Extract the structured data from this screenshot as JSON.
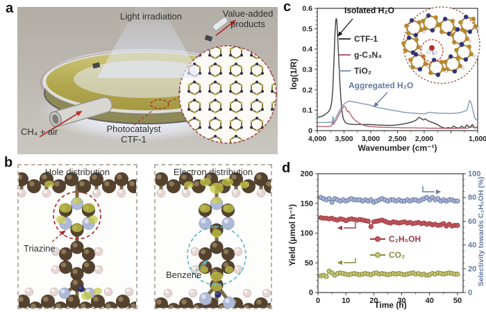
{
  "panels": {
    "a": {
      "label": "a",
      "light": "Light irradiation",
      "products": "Value-added products",
      "feed": "CH₄ + air",
      "catalyst1": "Photocatalyst",
      "catalyst2": "CTF-1"
    },
    "b": {
      "label": "b",
      "hole_title": "Hole distribution",
      "electron_title": "Electron distribution",
      "triazine": "Triazine",
      "benzene": "Benzene"
    },
    "c": {
      "label": "c"
    },
    "d": {
      "label": "d"
    }
  },
  "colors": {
    "accent_red": "#b23232",
    "ctf1_line": "#3d3d3d",
    "gc3n4_line": "#b2606c",
    "tio2_line": "#7d9ab5",
    "ethanol_line": "#9a3a42",
    "co2_line": "#8a8a3a",
    "selectivity_line": "#64789f",
    "hole_circle": "#b22828",
    "electron_circle": "#5fb6ca"
  },
  "chart_data": [
    {
      "panel": "c",
      "type": "line",
      "xlabel": "Wavenumber (cm⁻¹)",
      "ylabel": "log(1/R)",
      "xlim": [
        4000,
        1000
      ],
      "ylim": [
        0,
        0.6
      ],
      "x_reversed": true,
      "grid": false,
      "legend_position": "upper-left-inside",
      "xticks": [
        {
          "v": 4000,
          "t": "4,000"
        },
        {
          "v": 3500,
          "t": "3,500"
        },
        {
          "v": 3000,
          "t": "3,000"
        },
        {
          "v": 2500,
          "t": "2,500"
        },
        {
          "v": 2000,
          "t": "2,000"
        },
        {
          "v": 1500,
          "t": ""
        },
        {
          "v": 1000,
          "t": "1,000"
        }
      ],
      "yticks": [
        {
          "v": 0,
          "t": "0"
        },
        {
          "v": 0.1,
          "t": "0.1"
        },
        {
          "v": 0.2,
          "t": "0.2"
        },
        {
          "v": 0.3,
          "t": "0.3"
        },
        {
          "v": 0.4,
          "t": "0.4"
        },
        {
          "v": 0.5,
          "t": "0.5"
        },
        {
          "v": 0.6,
          "t": "0.6"
        }
      ],
      "annotations": [
        "Isolated H₂O",
        "Aggregated H₂O"
      ],
      "series": [
        {
          "name": "CTF-1",
          "color": "#3d3d3d",
          "points": [
            [
              4000,
              0.065
            ],
            [
              3950,
              0.068
            ],
            [
              3900,
              0.072
            ],
            [
              3850,
              0.08
            ],
            [
              3800,
              0.09
            ],
            [
              3760,
              0.105
            ],
            [
              3730,
              0.14
            ],
            [
              3710,
              0.2
            ],
            [
              3690,
              0.33
            ],
            [
              3670,
              0.47
            ],
            [
              3655,
              0.54
            ],
            [
              3645,
              0.55
            ],
            [
              3635,
              0.54
            ],
            [
              3620,
              0.47
            ],
            [
              3600,
              0.36
            ],
            [
              3580,
              0.25
            ],
            [
              3560,
              0.16
            ],
            [
              3540,
              0.1
            ],
            [
              3520,
              0.065
            ],
            [
              3500,
              0.05
            ],
            [
              3470,
              0.04
            ],
            [
              3440,
              0.035
            ],
            [
              3400,
              0.032
            ],
            [
              3300,
              0.03
            ],
            [
              3200,
              0.03
            ],
            [
              3100,
              0.03
            ],
            [
              3000,
              0.03
            ],
            [
              2900,
              0.028
            ],
            [
              2800,
              0.027
            ],
            [
              2700,
              0.026
            ],
            [
              2600,
              0.026
            ],
            [
              2500,
              0.028
            ],
            [
              2400,
              0.032
            ],
            [
              2300,
              0.038
            ],
            [
              2200,
              0.045
            ],
            [
              2150,
              0.052
            ],
            [
              2100,
              0.065
            ],
            [
              2060,
              0.06
            ],
            [
              2020,
              0.052
            ],
            [
              1980,
              0.058
            ],
            [
              1940,
              0.05
            ],
            [
              1900,
              0.045
            ],
            [
              1850,
              0.04
            ],
            [
              1800,
              0.035
            ],
            [
              1750,
              0.03
            ],
            [
              1700,
              0.02
            ],
            [
              1650,
              0.015
            ],
            [
              1600,
              0.012
            ],
            [
              1550,
              0.015
            ],
            [
              1500,
              0.012
            ],
            [
              1450,
              0.022
            ],
            [
              1400,
              0.015
            ],
            [
              1350,
              0.012
            ],
            [
              1300,
              0.022
            ],
            [
              1250,
              0.012
            ],
            [
              1200,
              0.028
            ],
            [
              1150,
              0.015
            ],
            [
              1100,
              0.03
            ],
            [
              1050,
              0.012
            ],
            [
              1000,
              0.02
            ]
          ]
        },
        {
          "name": "g-C₃N₄",
          "color": "#b2606c",
          "points": [
            [
              4000,
              0.02
            ],
            [
              3900,
              0.02
            ],
            [
              3800,
              0.02
            ],
            [
              3750,
              0.021
            ],
            [
              3720,
              0.03
            ],
            [
              3705,
              0.065
            ],
            [
              3695,
              0.03
            ],
            [
              3680,
              0.04
            ],
            [
              3650,
              0.05
            ],
            [
              3620,
              0.065
            ],
            [
              3590,
              0.08
            ],
            [
              3560,
              0.095
            ],
            [
              3530,
              0.11
            ],
            [
              3500,
              0.12
            ],
            [
              3470,
              0.115
            ],
            [
              3450,
              0.1
            ],
            [
              3430,
              0.092
            ],
            [
              3410,
              0.095
            ],
            [
              3390,
              0.085
            ],
            [
              3350,
              0.068
            ],
            [
              3300,
              0.052
            ],
            [
              3250,
              0.042
            ],
            [
              3200,
              0.034
            ],
            [
              3150,
              0.028
            ],
            [
              3100,
              0.024
            ],
            [
              3000,
              0.02
            ],
            [
              2900,
              0.018
            ],
            [
              2800,
              0.017
            ],
            [
              2700,
              0.016
            ],
            [
              2600,
              0.015
            ],
            [
              2500,
              0.015
            ],
            [
              2400,
              0.014
            ],
            [
              2300,
              0.014
            ],
            [
              2200,
              0.014
            ],
            [
              2100,
              0.013
            ],
            [
              2000,
              0.013
            ],
            [
              1900,
              0.012
            ],
            [
              1800,
              0.012
            ],
            [
              1700,
              0.012
            ],
            [
              1600,
              0.011
            ],
            [
              1500,
              0.011
            ],
            [
              1400,
              0.011
            ],
            [
              1300,
              0.012
            ],
            [
              1200,
              0.012
            ],
            [
              1100,
              0.018
            ],
            [
              1050,
              0.014
            ],
            [
              1000,
              0.016
            ]
          ]
        },
        {
          "name": "TiO₂",
          "color": "#7d9ab5",
          "points": [
            [
              4000,
              0.04
            ],
            [
              3900,
              0.04
            ],
            [
              3800,
              0.041
            ],
            [
              3750,
              0.042
            ],
            [
              3720,
              0.035
            ],
            [
              3705,
              0.07
            ],
            [
              3695,
              0.045
            ],
            [
              3670,
              0.055
            ],
            [
              3640,
              0.07
            ],
            [
              3610,
              0.085
            ],
            [
              3580,
              0.1
            ],
            [
              3550,
              0.115
            ],
            [
              3520,
              0.125
            ],
            [
              3490,
              0.132
            ],
            [
              3460,
              0.138
            ],
            [
              3430,
              0.142
            ],
            [
              3400,
              0.145
            ],
            [
              3350,
              0.143
            ],
            [
              3300,
              0.14
            ],
            [
              3250,
              0.138
            ],
            [
              3200,
              0.135
            ],
            [
              3150,
              0.132
            ],
            [
              3100,
              0.13
            ],
            [
              3050,
              0.127
            ],
            [
              3000,
              0.124
            ],
            [
              2950,
              0.12
            ],
            [
              2900,
              0.116
            ],
            [
              2850,
              0.112
            ],
            [
              2800,
              0.11
            ],
            [
              2700,
              0.105
            ],
            [
              2600,
              0.1
            ],
            [
              2500,
              0.096
            ],
            [
              2400,
              0.091
            ],
            [
              2300,
              0.088
            ],
            [
              2200,
              0.086
            ],
            [
              2100,
              0.084
            ],
            [
              2000,
              0.082
            ],
            [
              1950,
              0.086
            ],
            [
              1900,
              0.09
            ],
            [
              1850,
              0.088
            ],
            [
              1800,
              0.087
            ],
            [
              1700,
              0.085
            ],
            [
              1600,
              0.085
            ],
            [
              1500,
              0.084
            ],
            [
              1400,
              0.086
            ],
            [
              1300,
              0.09
            ],
            [
              1250,
              0.095
            ],
            [
              1200,
              0.1
            ],
            [
              1150,
              0.148
            ],
            [
              1120,
              0.135
            ],
            [
              1080,
              0.09
            ],
            [
              1050,
              0.06
            ],
            [
              1000,
              0.048
            ]
          ]
        }
      ]
    },
    {
      "panel": "d",
      "type": "scatter-line",
      "xlabel": "Time (h)",
      "ylabel_left": "Yield (μmol h⁻¹)",
      "ylabel_right": "Selectivity towards C₂H₅OH (%)",
      "xlim": [
        0,
        52
      ],
      "ylim_left": [
        0,
        200
      ],
      "ylim_right": [
        0,
        100
      ],
      "grid": false,
      "xticks": [
        0,
        10,
        20,
        30,
        40,
        50
      ],
      "yticks_left": [
        0,
        50,
        100,
        150,
        200
      ],
      "yticks_right": [
        0,
        20,
        40,
        60,
        80,
        100
      ],
      "legend": [
        "C₂H₅OH",
        "CO₂"
      ],
      "x": [
        1,
        2,
        3,
        4,
        5,
        6,
        7,
        8,
        9,
        10,
        11,
        12,
        13,
        14,
        15,
        16,
        17,
        18,
        19,
        20,
        21,
        22,
        23,
        24,
        25,
        26,
        27,
        28,
        29,
        30,
        31,
        32,
        33,
        34,
        35,
        36,
        37,
        38,
        39,
        40,
        41,
        42,
        43,
        44,
        45,
        46,
        47,
        48,
        49,
        50
      ],
      "series": [
        {
          "name": "C₂H₅OH",
          "axis": "left",
          "line": "#9a3a42",
          "fill": "#c4565c",
          "values": [
            126,
            125,
            125,
            124,
            125,
            123,
            122,
            124,
            123,
            121,
            123,
            124,
            123,
            122,
            123,
            122,
            121,
            120,
            111,
            119,
            120,
            121,
            122,
            120,
            118,
            117,
            119,
            118,
            117,
            118,
            119,
            117,
            118,
            116,
            117,
            118,
            116,
            117,
            115,
            116,
            114,
            115,
            113,
            114,
            116,
            112,
            115,
            112,
            113,
            113
          ]
        },
        {
          "name": "CO₂",
          "axis": "left",
          "line": "#8a8a3a",
          "fill": "#c6c67a",
          "values": [
            28,
            29,
            27,
            36,
            33,
            29,
            32,
            33,
            32,
            31,
            30,
            31,
            32,
            31,
            30,
            31,
            32,
            31,
            30,
            32,
            33,
            31,
            32,
            31,
            30,
            31,
            32,
            31,
            32,
            31,
            30,
            31,
            32,
            33,
            31,
            32,
            30,
            31,
            29,
            30,
            32,
            31,
            33,
            32,
            31,
            32,
            33,
            32,
            31,
            31
          ]
        },
        {
          "name": "Selectivity towards C₂H₅OH",
          "axis": "right",
          "line": "#64789f",
          "fill": "#aab6d8",
          "values": [
            80,
            79,
            78,
            79,
            76,
            79,
            78,
            77,
            78,
            77,
            78,
            79,
            78,
            78,
            78,
            77,
            78,
            77,
            78,
            76,
            77,
            78,
            79,
            78,
            77,
            78,
            78,
            77,
            78,
            77,
            77,
            78,
            77,
            78,
            78,
            77,
            78,
            79,
            80,
            78,
            80,
            78,
            79,
            77,
            78,
            77,
            78,
            78,
            77,
            77
          ]
        }
      ]
    }
  ]
}
